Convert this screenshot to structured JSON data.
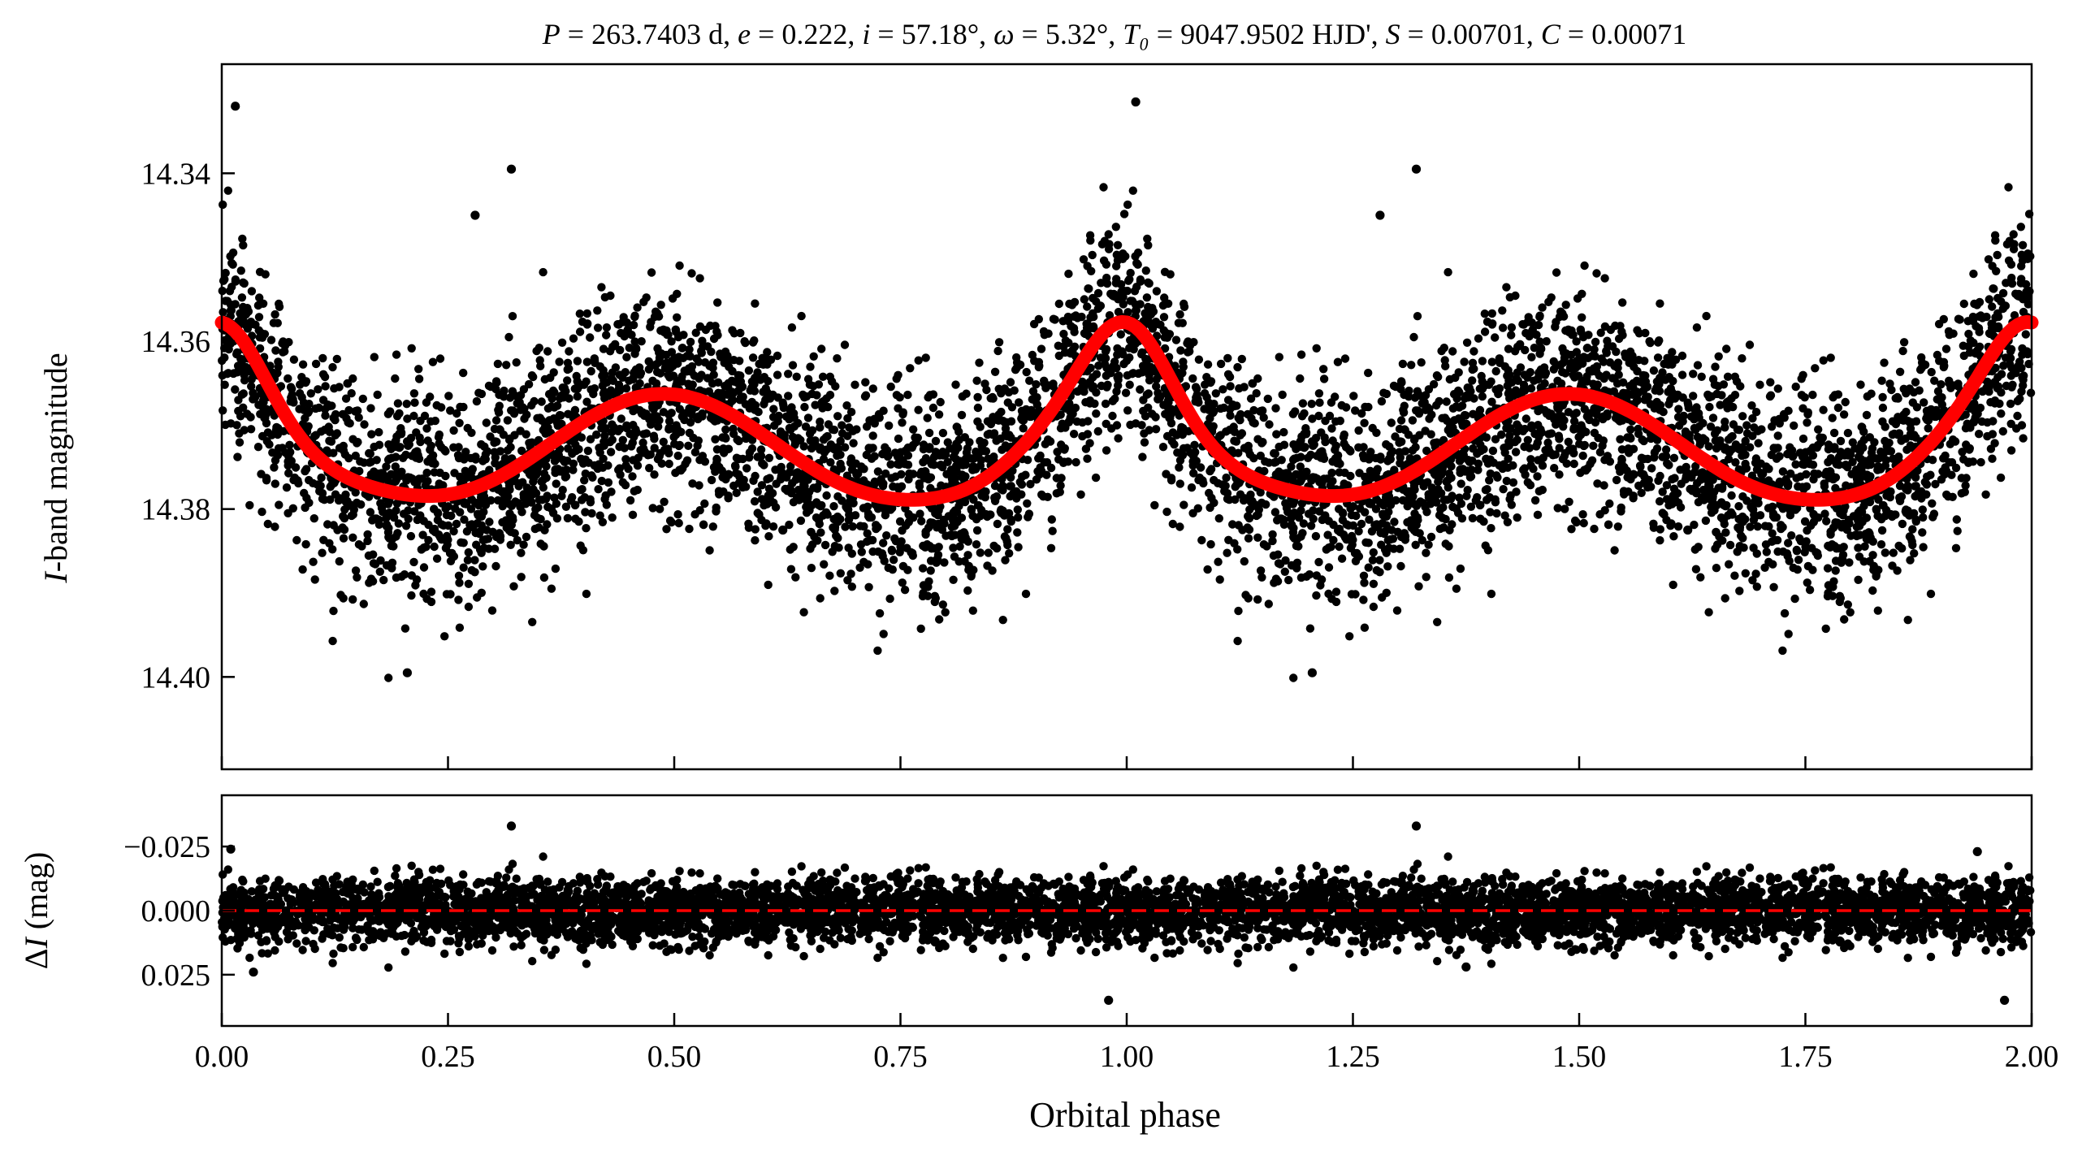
{
  "chart_data": [
    {
      "type": "scatter",
      "panel": "light-curve",
      "title": "P = 263.7403 d, e = 0.222, i = 57.18°, ω = 5.32°, T₀ = 9047.9502 HJD', S = 0.00701, C = 0.00071",
      "xlabel": "Orbital phase",
      "ylabel_var": "I",
      "ylabel_rest": "-band magnitude",
      "xlim": [
        0.0,
        2.0
      ],
      "ylim": [
        14.411,
        14.327
      ],
      "y_inverted": true,
      "yticks": [
        14.34,
        14.36,
        14.38,
        14.4
      ],
      "ytick_labels": [
        "14.34",
        "14.36",
        "14.38",
        "14.40"
      ],
      "xticks": [
        0.0,
        0.25,
        0.5,
        0.75,
        1.0,
        1.25,
        1.5,
        1.75,
        2.0
      ],
      "grid": false,
      "series": [
        {
          "kind": "points",
          "color": "#000000",
          "generated_points": 3000,
          "model": {
            "baseline": 14.3722,
            "terms": [
              {
                "kind": "cos",
                "harmonic": 1,
                "amplitude": -0.0001
              },
              {
                "kind": "cos",
                "harmonic": 2,
                "amplitude": -0.00595
              },
              {
                "kind": "sin",
                "harmonic": 2,
                "amplitude": 0.0009
              },
              {
                "kind": "gauss",
                "center": 1.0,
                "width": 0.045,
                "amplitude": -0.0092
              },
              {
                "kind": "gauss",
                "center": 0.85,
                "width": 0.06,
                "amplitude": 0.0028
              },
              {
                "kind": "gauss",
                "center": 0.1,
                "width": 0.06,
                "amplitude": 0.0028
              }
            ],
            "scatter_sigma": 0.0062
          },
          "notable_points": [
            {
              "x": 0.015,
              "y": 14.332
            },
            {
              "x": 0.32,
              "y": 14.3395
            },
            {
              "x": 1.01,
              "y": 14.3315
            },
            {
              "x": 1.32,
              "y": 14.3395
            },
            {
              "x": 0.205,
              "y": 14.3995
            },
            {
              "x": 1.205,
              "y": 14.3995
            },
            {
              "x": 0.28,
              "y": 14.345
            },
            {
              "x": 1.28,
              "y": 14.345
            },
            {
              "x": 0.62,
              "y": 14.3825
            },
            {
              "x": 1.62,
              "y": 14.3825
            }
          ]
        },
        {
          "kind": "model-curve",
          "color": "#ff0000",
          "samples": 401,
          "model_ref": "points.model"
        }
      ]
    },
    {
      "type": "scatter",
      "panel": "residuals",
      "xlabel": "Orbital phase",
      "ylabel_prefix": "Δ",
      "ylabel_var": "I",
      "ylabel_rest": " (mag)",
      "xlim": [
        0.0,
        2.0
      ],
      "ylim": [
        0.045,
        -0.045
      ],
      "y_inverted": true,
      "yticks": [
        -0.025,
        0.0,
        0.025
      ],
      "ytick_labels": [
        "−0.025",
        "0.000",
        "0.025"
      ],
      "xticks": [
        0.0,
        0.25,
        0.5,
        0.75,
        1.0,
        1.25,
        1.5,
        1.75,
        2.0
      ],
      "xtick_labels": [
        "0.00",
        "0.25",
        "0.50",
        "0.75",
        "1.00",
        "1.25",
        "1.50",
        "1.75",
        "2.00"
      ],
      "grid": false,
      "series": [
        {
          "kind": "points",
          "color": "#000000",
          "generated_points": 3000,
          "scatter_sigma": 0.0062,
          "notable_points": [
            {
              "x": 0.32,
              "y": -0.033
            },
            {
              "x": 1.32,
              "y": -0.033
            },
            {
              "x": 0.98,
              "y": 0.035
            },
            {
              "x": 1.97,
              "y": 0.035
            },
            {
              "x": 0.01,
              "y": -0.024
            },
            {
              "x": 1.94,
              "y": -0.023
            },
            {
              "x": 0.035,
              "y": 0.024
            },
            {
              "x": 1.375,
              "y": 0.022
            }
          ]
        },
        {
          "kind": "zero-line",
          "y": 0.0,
          "color": "#ff0000",
          "style": "dashed"
        }
      ]
    }
  ]
}
